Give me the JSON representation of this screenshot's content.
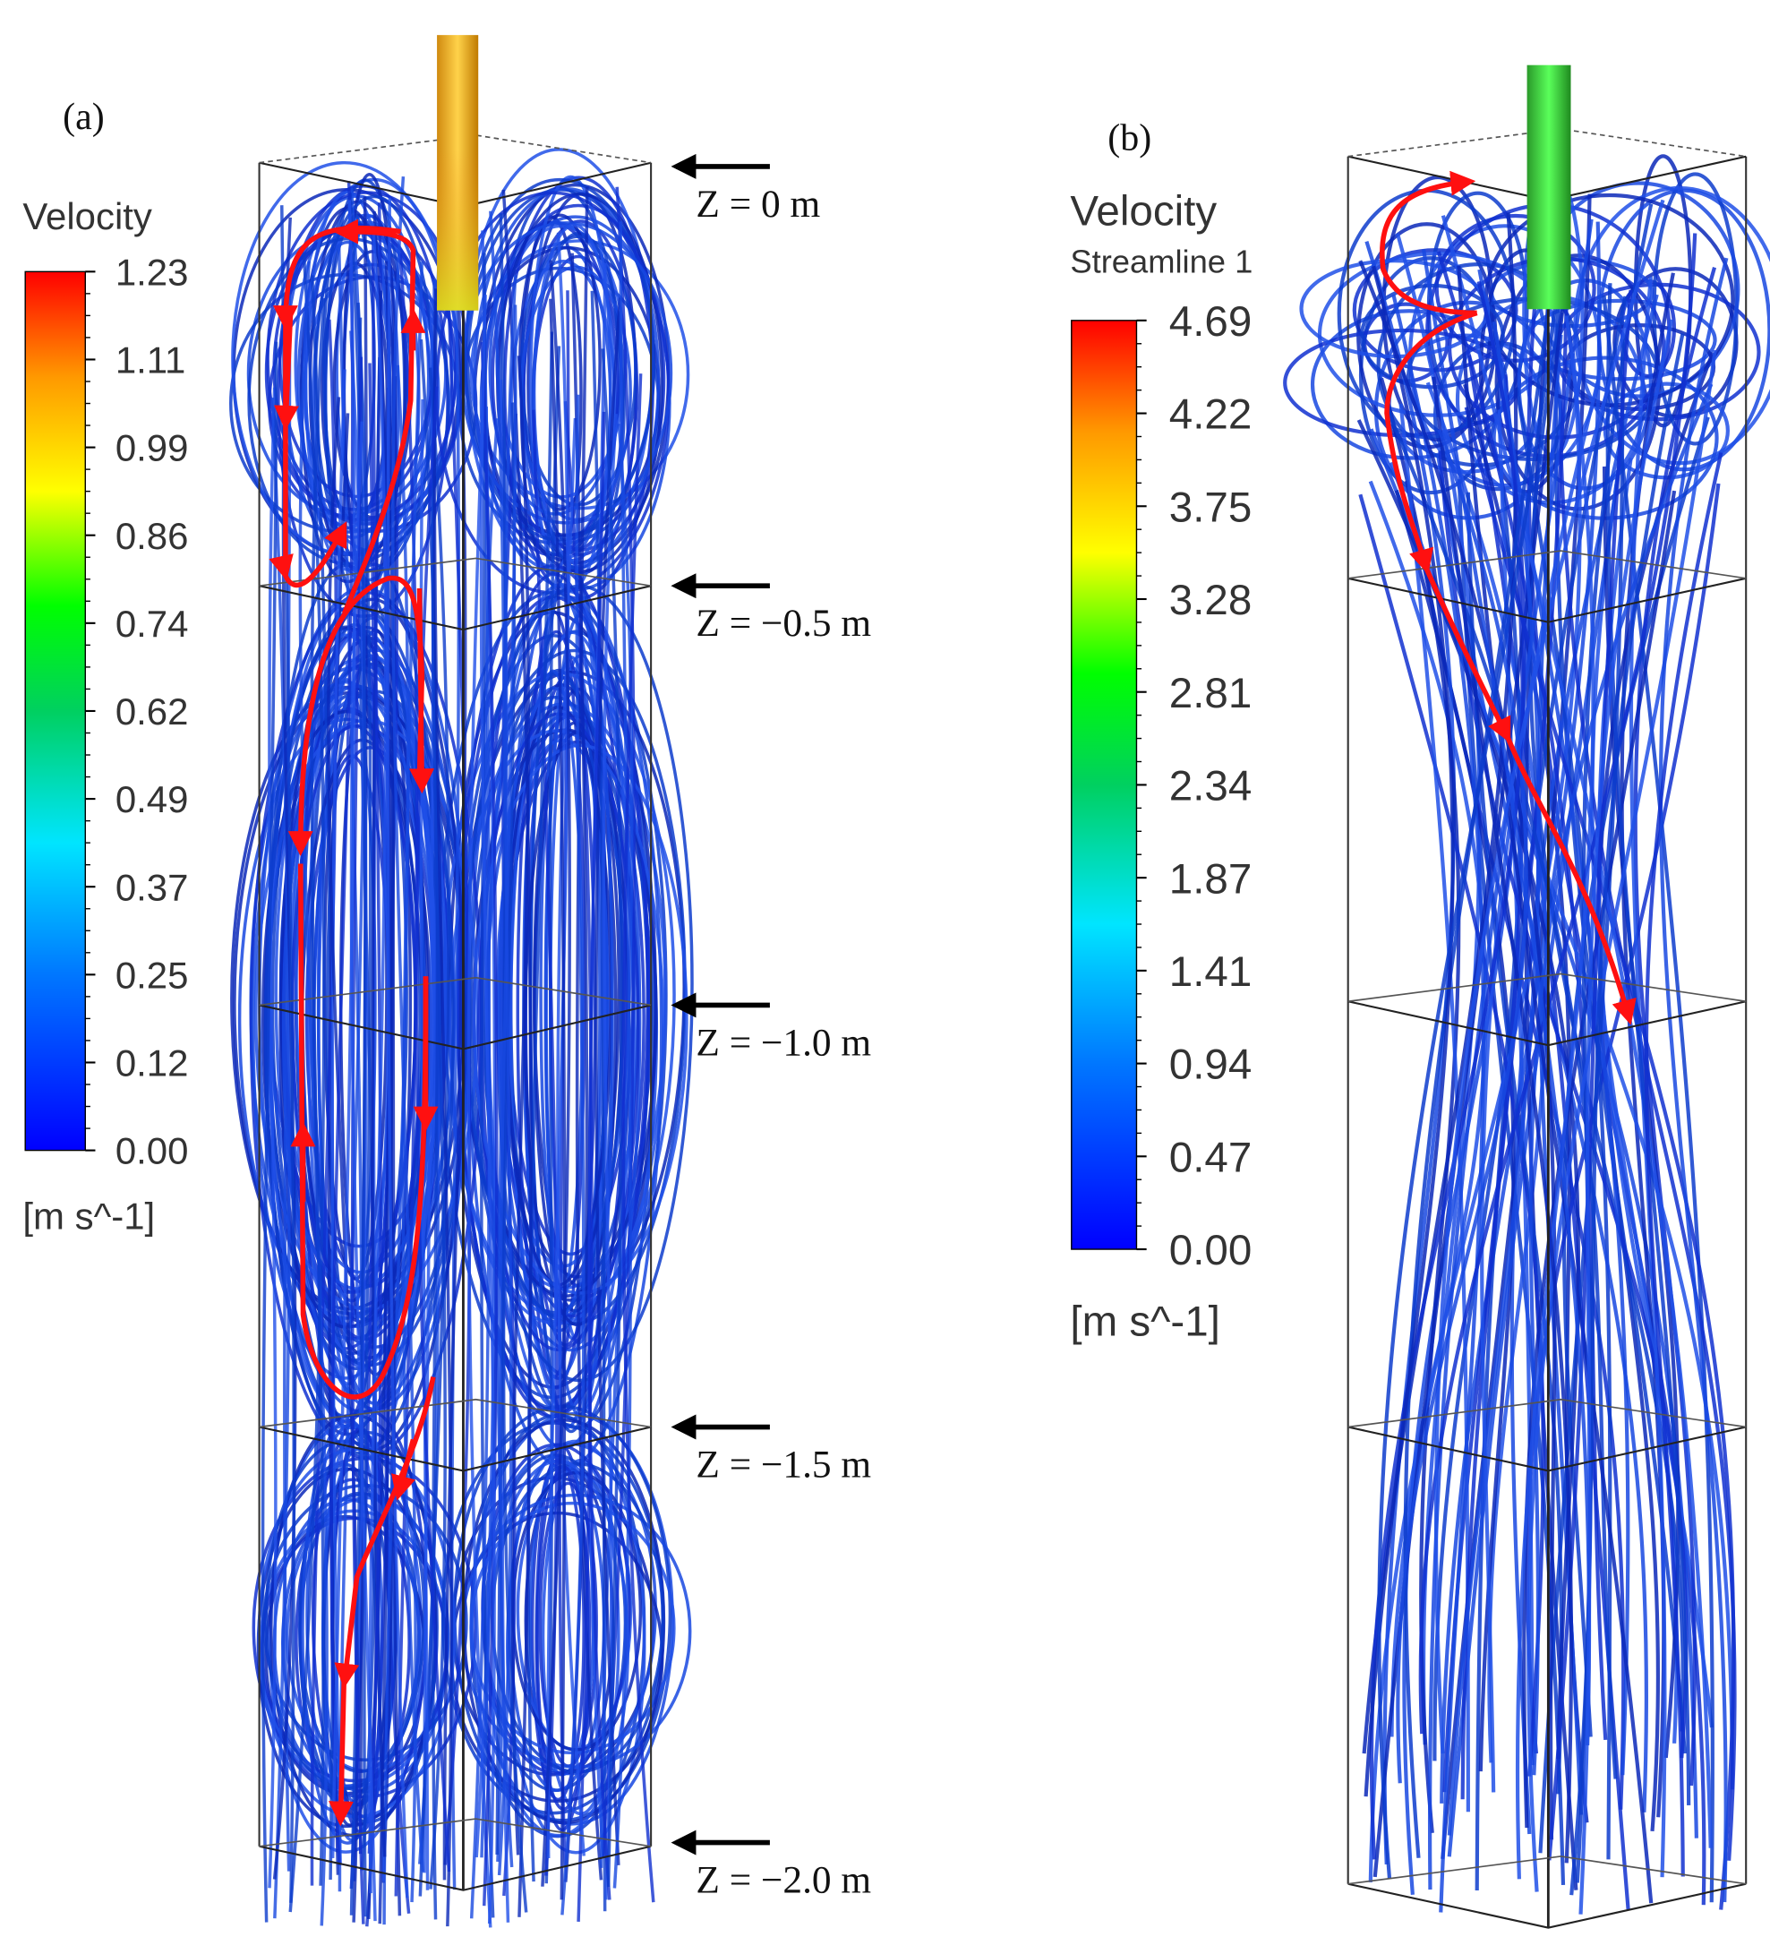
{
  "panel_a": {
    "label": "(a)",
    "legend": {
      "title": "Velocity",
      "ticks": [
        "1.23",
        "1.11",
        "0.99",
        "0.86",
        "0.74",
        "0.62",
        "0.49",
        "0.37",
        "0.25",
        "0.12",
        "0.00"
      ],
      "unit": "[m s^-1]"
    },
    "z_labels": [
      "Z = 0 m",
      "Z = −0.5 m",
      "Z = −1.0 m",
      "Z = −1.5 m",
      "Z = −2.0 m"
    ]
  },
  "panel_b": {
    "label": "(b)",
    "legend": {
      "title": "Velocity",
      "subtitle": "Streamline 1",
      "ticks": [
        "4.69",
        "4.22",
        "3.75",
        "3.28",
        "2.81",
        "2.34",
        "1.87",
        "1.41",
        "0.94",
        "0.47",
        "0.00"
      ],
      "unit": "[m s^-1]"
    }
  }
}
